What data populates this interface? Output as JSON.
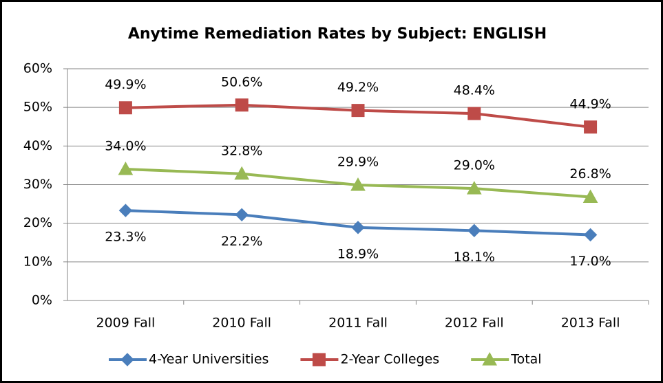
{
  "chart_data": {
    "type": "line",
    "title": "Anytime Remediation Rates by Subject: ENGLISH",
    "categories": [
      "2009 Fall",
      "2010 Fall",
      "2011 Fall",
      "2012 Fall",
      "2013 Fall"
    ],
    "series": [
      {
        "name": "4-Year Universities",
        "color": "#4a7ebb",
        "marker": "diamond",
        "values": [
          23.3,
          22.2,
          18.9,
          18.1,
          17.0
        ],
        "value_labels": [
          "23.3%",
          "22.2%",
          "18.9%",
          "18.1%",
          "17.0%"
        ]
      },
      {
        "name": "2-Year Colleges",
        "color": "#be4b48",
        "marker": "square",
        "values": [
          49.9,
          50.6,
          49.2,
          48.4,
          44.9
        ],
        "value_labels": [
          "49.9%",
          "50.6%",
          "49.2%",
          "48.4%",
          "44.9%"
        ]
      },
      {
        "name": "Total",
        "color": "#98b954",
        "marker": "triangle",
        "values": [
          34.0,
          32.8,
          29.9,
          29.0,
          26.8
        ],
        "value_labels": [
          "34.0%",
          "32.8%",
          "29.9%",
          "29.0%",
          "26.8%"
        ]
      }
    ],
    "ylim": [
      0,
      60
    ],
    "yticks": [
      {
        "value": 0,
        "label": "0%"
      },
      {
        "value": 10,
        "label": "10%"
      },
      {
        "value": 20,
        "label": "20%"
      },
      {
        "value": 30,
        "label": "30%"
      },
      {
        "value": 40,
        "label": "40%"
      },
      {
        "value": 50,
        "label": "50%"
      },
      {
        "value": 60,
        "label": "60%"
      }
    ],
    "grid": true,
    "legend": "bottom"
  }
}
